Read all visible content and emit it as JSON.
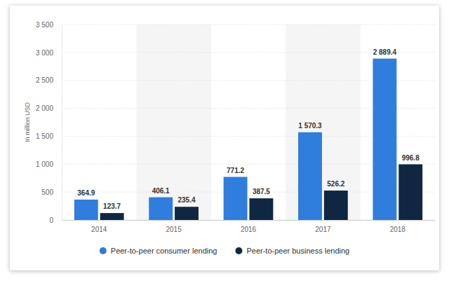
{
  "chart_data": {
    "type": "bar",
    "y_label": "In million USD",
    "categories": [
      "2014",
      "2015",
      "2016",
      "2017",
      "2018"
    ],
    "series": [
      {
        "name": "Peer-to-peer consumer lending",
        "color": "#2f7ddd",
        "values": [
          364.9,
          406.1,
          771.2,
          1570.3,
          2889.4
        ],
        "value_labels": [
          "364.9",
          "406.1",
          "771.2",
          "1 570.3",
          "2 889.4"
        ]
      },
      {
        "name": "Peer-to-peer business lending",
        "color": "#0f2741",
        "values": [
          123.7,
          235.4,
          387.5,
          526.2,
          996.8
        ],
        "value_labels": [
          "123.7",
          "235.4",
          "387.5",
          "526.2",
          "996.8"
        ]
      }
    ],
    "ylim": [
      0,
      3500
    ],
    "yticks": [
      0,
      500,
      {
        "value": 1000,
        "label": "1 000"
      },
      {
        "value": 1500,
        "label": "1 500"
      },
      {
        "value": 2000,
        "label": "2 000"
      },
      {
        "value": 2500,
        "label": "2 500"
      },
      {
        "value": 3000,
        "label": "3 000"
      },
      {
        "value": 3500,
        "label": "3 500"
      }
    ],
    "grid": true,
    "data_labels": true,
    "legend": "bottom"
  }
}
